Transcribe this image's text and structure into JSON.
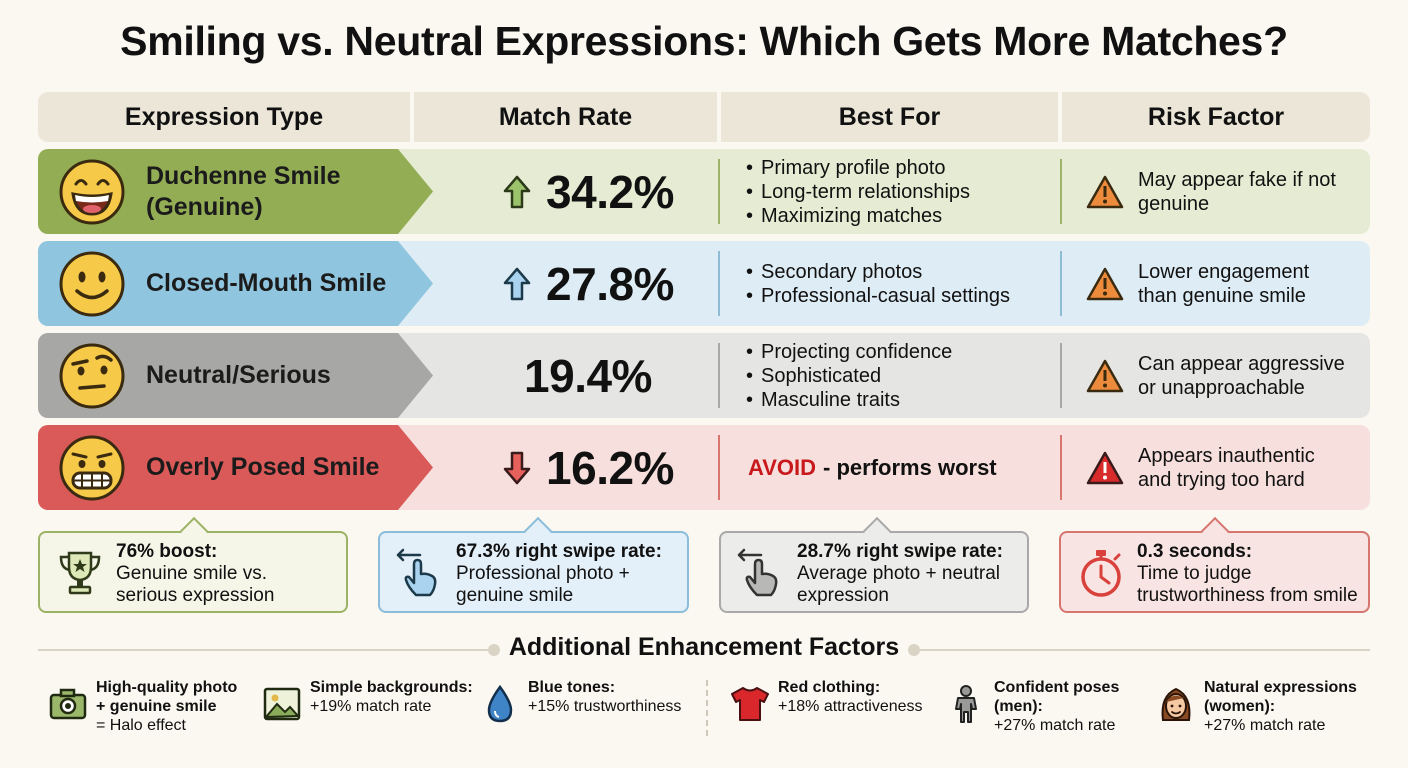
{
  "title": "Smiling vs. Neutral Expressions: Which Gets More Matches?",
  "columns": [
    "Expression Type",
    "Match Rate",
    "Best For",
    "Risk Factor"
  ],
  "rows": [
    {
      "name_line1": "Duchenne Smile",
      "name_line2": "(Genuine)",
      "face_icon": "laughing-face-icon",
      "trend": "up",
      "rate": "34.2%",
      "best_for": [
        "Primary profile photo",
        "Long-term relationships",
        "Maximizing matches"
      ],
      "risk": "May appear fake if not genuine",
      "color": "#93ad55"
    },
    {
      "name_line1": "Closed-Mouth Smile",
      "name_line2": "",
      "face_icon": "smiling-face-icon",
      "trend": "up",
      "rate": "27.8%",
      "best_for": [
        "Secondary photos",
        "Professional-casual settings"
      ],
      "risk": "Lower engagement than genuine smile",
      "color": "#8fc5de"
    },
    {
      "name_line1": "Neutral/Serious",
      "name_line2": "",
      "face_icon": "raised-eyebrow-face-icon",
      "trend": "none",
      "rate": "19.4%",
      "best_for": [
        "Projecting confidence",
        "Sophisticated",
        "Masculine traits"
      ],
      "risk": "Can appear aggressive or unapproachable",
      "color": "#a7a7a5"
    },
    {
      "name_line1": "Overly Posed Smile",
      "name_line2": "",
      "face_icon": "grimacing-face-icon",
      "trend": "down",
      "rate": "16.2%",
      "avoid_label": "AVOID",
      "avoid_rest": "- performs worst",
      "risk": "Appears inauthentic and trying too hard",
      "color": "#d95a58"
    }
  ],
  "callouts": [
    {
      "icon": "trophy-icon",
      "bold": "76% boost:",
      "text": "Genuine smile vs. serious expression"
    },
    {
      "icon": "swipe-hand-icon",
      "bold": "67.3% right swipe rate:",
      "text": "Professional photo + genuine smile"
    },
    {
      "icon": "swipe-hand-icon",
      "bold": "28.7% right swipe rate:",
      "text": "Average photo + neutral expression"
    },
    {
      "icon": "stopwatch-icon",
      "bold": "0.3 seconds:",
      "text": "Time to judge trustworthiness from smile"
    }
  ],
  "additional": {
    "heading": "Additional Enhancement Factors",
    "factors": [
      {
        "icon": "camera-icon",
        "bold": "High-quality photo + genuine smile",
        "text": "= Halo effect"
      },
      {
        "icon": "landscape-image-icon",
        "bold": "Simple backgrounds:",
        "text": "+19% match rate"
      },
      {
        "icon": "water-drop-icon",
        "bold": "Blue tones:",
        "text": "+15% trustworthiness"
      },
      {
        "icon": "red-shirt-icon",
        "bold": "Red clothing:",
        "text": "+18% attractiveness"
      },
      {
        "icon": "person-standing-icon",
        "bold": "Confident poses (men):",
        "text": "+27% match rate"
      },
      {
        "icon": "woman-face-icon",
        "bold": "Natural expressions (women):",
        "text": "+27% match rate"
      }
    ]
  }
}
